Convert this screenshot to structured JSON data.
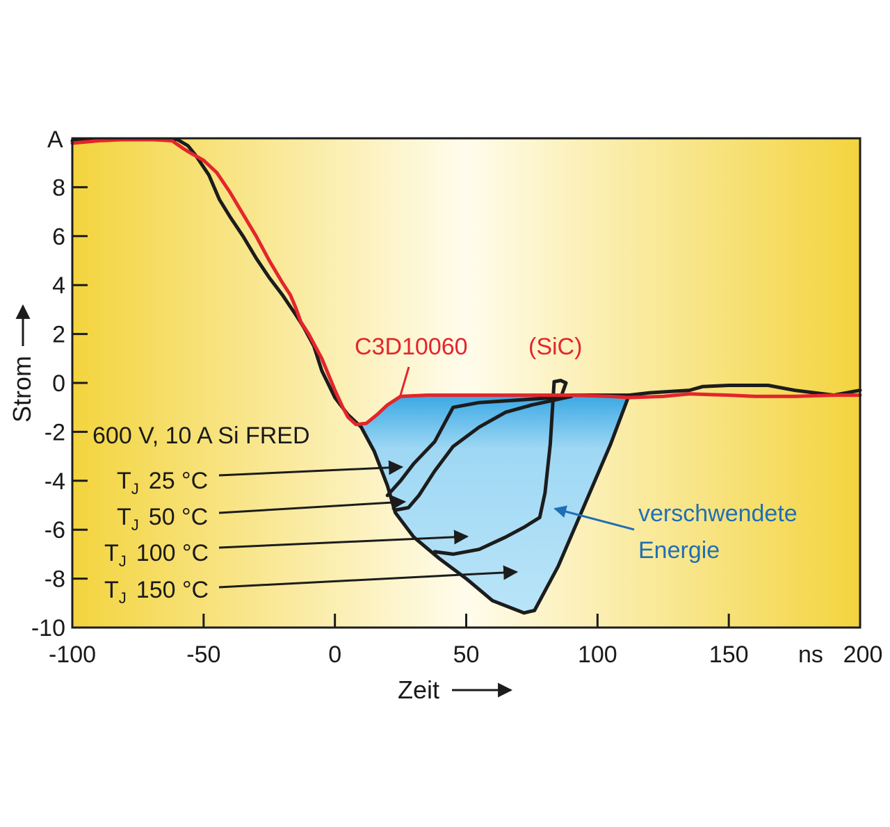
{
  "chart_data": {
    "type": "line",
    "xlabel": "Zeit",
    "ylabel": "Strom",
    "x_unit": "ns",
    "y_unit": "A",
    "xlim": [
      -100,
      200
    ],
    "ylim": [
      -10,
      10
    ],
    "x_ticks": [
      -100,
      -50,
      0,
      50,
      100,
      150,
      200
    ],
    "y_ticks": [
      -10,
      -8,
      -6,
      -4,
      -2,
      0,
      2,
      4,
      6,
      8
    ],
    "y_tick_labels": [
      "-10",
      "-8",
      "-6",
      "-4",
      "-2",
      "0",
      "2",
      "4",
      "6",
      "8"
    ],
    "x_tick_labels": [
      "-100",
      "-50",
      "0",
      "50",
      "100",
      "150",
      "200"
    ],
    "grid": false,
    "colors": {
      "sic": "#e4252b",
      "si": "#1c1c1c",
      "fill": "#8fd0f0",
      "fill_edge": "#2b9fe0",
      "bg_edge": "#f5d84a",
      "bg_center": "#fffbe6",
      "energy_label": "#1f6fb5"
    },
    "series": [
      {
        "name": "C3D10060 (SiC)",
        "color": "#e4252b",
        "points": [
          [
            -100,
            9.8
          ],
          [
            -95,
            9.85
          ],
          [
            -90,
            9.9
          ],
          [
            -80,
            9.95
          ],
          [
            -70,
            9.95
          ],
          [
            -62,
            9.9
          ],
          [
            -58,
            9.6
          ],
          [
            -55,
            9.4
          ],
          [
            -50,
            9.1
          ],
          [
            -45,
            8.6
          ],
          [
            -40,
            7.8
          ],
          [
            -35,
            6.9
          ],
          [
            -30,
            6.0
          ],
          [
            -25,
            5.0
          ],
          [
            -20,
            4.1
          ],
          [
            -17,
            3.6
          ],
          [
            -15,
            3.1
          ],
          [
            -13,
            2.5
          ],
          [
            -10,
            2.0
          ],
          [
            -5,
            1.0
          ],
          [
            0,
            -0.3
          ],
          [
            3,
            -1.0
          ],
          [
            5,
            -1.4
          ],
          [
            8,
            -1.7
          ],
          [
            12,
            -1.65
          ],
          [
            16,
            -1.3
          ],
          [
            20,
            -0.9
          ],
          [
            25,
            -0.55
          ],
          [
            35,
            -0.5
          ],
          [
            60,
            -0.5
          ],
          [
            90,
            -0.5
          ],
          [
            105,
            -0.55
          ],
          [
            112,
            -0.6
          ],
          [
            125,
            -0.55
          ],
          [
            135,
            -0.45
          ],
          [
            150,
            -0.5
          ],
          [
            160,
            -0.55
          ],
          [
            175,
            -0.55
          ],
          [
            190,
            -0.5
          ],
          [
            200,
            -0.5
          ]
        ]
      },
      {
        "name": "600 V, 10 A Si FRED",
        "color": "#1c1c1c",
        "points": [
          [
            -100,
            9.9
          ],
          [
            -90,
            9.95
          ],
          [
            -80,
            9.95
          ],
          [
            -65,
            9.95
          ],
          [
            -60,
            9.95
          ],
          [
            -56,
            9.7
          ],
          [
            -53,
            9.3
          ],
          [
            -48,
            8.5
          ],
          [
            -44,
            7.5
          ],
          [
            -40,
            6.8
          ],
          [
            -35,
            6.0
          ],
          [
            -30,
            5.1
          ],
          [
            -25,
            4.3
          ],
          [
            -20,
            3.6
          ],
          [
            -15,
            2.8
          ],
          [
            -12,
            2.3
          ],
          [
            -8,
            1.5
          ],
          [
            -5,
            0.5
          ],
          [
            0,
            -0.6
          ],
          [
            5,
            -1.3
          ],
          [
            10,
            -1.8
          ],
          [
            15,
            -2.8
          ],
          [
            20,
            -4.2
          ],
          [
            23,
            -5.3
          ],
          [
            30,
            -6.3
          ],
          [
            40,
            -7.2
          ],
          [
            50,
            -8.0
          ],
          [
            60,
            -8.9
          ],
          [
            72,
            -9.4
          ],
          [
            76,
            -9.3
          ],
          [
            85,
            -7.5
          ],
          [
            95,
            -5.0
          ],
          [
            105,
            -2.5
          ],
          [
            112,
            -0.5
          ],
          [
            120,
            -0.4
          ],
          [
            135,
            -0.3
          ],
          [
            140,
            -0.15
          ],
          [
            150,
            -0.1
          ],
          [
            165,
            -0.1
          ],
          [
            175,
            -0.3
          ],
          [
            190,
            -0.5
          ],
          [
            200,
            -0.3
          ]
        ]
      },
      {
        "name": "TJ 25 °C",
        "color": "#1c1c1c",
        "points": [
          [
            20,
            -4.6
          ],
          [
            25,
            -4.0
          ],
          [
            30,
            -3.3
          ],
          [
            38,
            -2.4
          ],
          [
            45,
            -1.0
          ],
          [
            55,
            -0.8
          ],
          [
            70,
            -0.7
          ],
          [
            90,
            -0.55
          ]
        ]
      },
      {
        "name": "TJ 50 °C",
        "color": "#1c1c1c",
        "points": [
          [
            23,
            -5.2
          ],
          [
            28,
            -5.1
          ],
          [
            32,
            -4.6
          ],
          [
            38,
            -3.6
          ],
          [
            45,
            -2.6
          ],
          [
            55,
            -1.8
          ],
          [
            65,
            -1.2
          ],
          [
            75,
            -0.9
          ],
          [
            90,
            -0.55
          ]
        ]
      },
      {
        "name": "TJ 100 °C",
        "color": "#1c1c1c",
        "points": [
          [
            38,
            -6.9
          ],
          [
            45,
            -7.0
          ],
          [
            55,
            -6.8
          ],
          [
            65,
            -6.3
          ],
          [
            72,
            -5.9
          ],
          [
            78,
            -5.5
          ],
          [
            80,
            -4.5
          ],
          [
            82,
            -2.5
          ],
          [
            83,
            -0.8
          ],
          [
            83.5,
            0.05
          ],
          [
            86,
            0.1
          ],
          [
            88,
            0
          ],
          [
            86,
            -0.6
          ],
          [
            90,
            -0.5
          ],
          [
            112,
            -0.5
          ]
        ]
      }
    ],
    "annotations": {
      "sic_label_left": "C3D10060",
      "sic_label_right": "(SiC)",
      "si_label": "600 V, 10 A Si FRED",
      "tj": [
        {
          "sub": "J",
          "prefix": "T",
          "value": "25 °C"
        },
        {
          "sub": "J",
          "prefix": "T",
          "value": "50 °C"
        },
        {
          "sub": "J",
          "prefix": "T",
          "value": "100 °C"
        },
        {
          "sub": "J",
          "prefix": "T",
          "value": "150 °C"
        }
      ],
      "energy_line1": "verschwendete",
      "energy_line2": "Energie"
    }
  }
}
